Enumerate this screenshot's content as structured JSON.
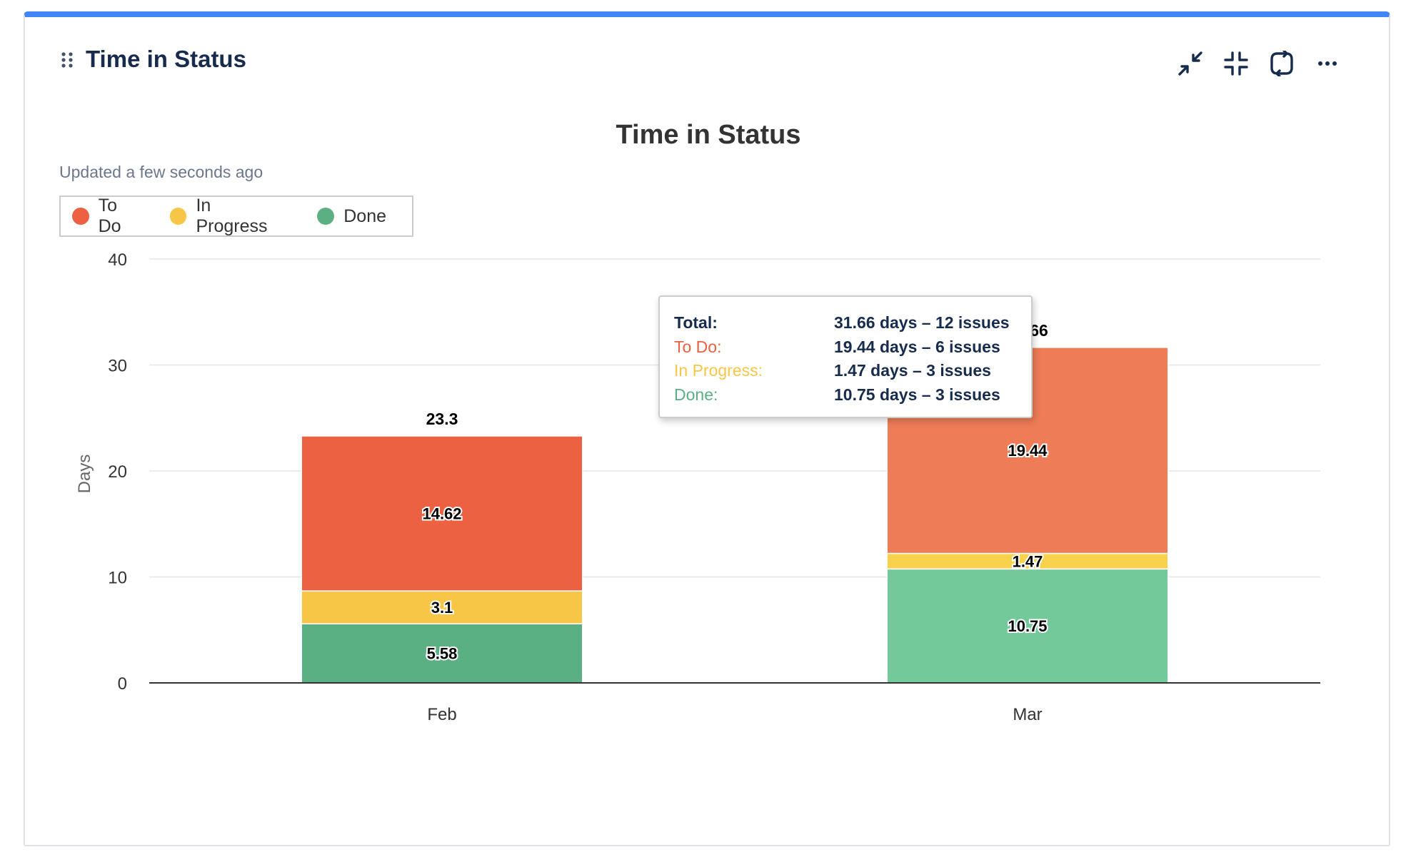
{
  "header": {
    "title": "Time in Status",
    "tools": [
      "minimize-icon",
      "collapse-icon",
      "refresh-icon",
      "more-icon"
    ]
  },
  "updated_text": "Updated a few seconds ago",
  "legend": [
    {
      "label": "To Do",
      "color": "#eb6142"
    },
    {
      "label": "In Progress",
      "color": "#f7c646"
    },
    {
      "label": "Done",
      "color": "#5bb083"
    }
  ],
  "tooltip": {
    "rows": [
      {
        "label": "Total:",
        "value": "31.66 days – 12 issues",
        "color": "#172b4d",
        "bold": true
      },
      {
        "label": "To Do:",
        "value": "19.44 days – 6 issues",
        "color": "#eb6142",
        "bold": false
      },
      {
        "label": "In Progress:",
        "value": "1.47 days – 3 issues",
        "color": "#f7c646",
        "bold": false
      },
      {
        "label": "Done:",
        "value": "10.75 days – 3 issues",
        "color": "#5bb083",
        "bold": false
      }
    ]
  },
  "chart_data": {
    "type": "bar",
    "stacked": true,
    "title": "Time in Status",
    "xlabel": "",
    "ylabel": "Days",
    "ylim": [
      0,
      40
    ],
    "yticks": [
      0,
      10,
      20,
      30,
      40
    ],
    "categories": [
      "Feb",
      "Mar"
    ],
    "totals": [
      "23.3",
      "31.66"
    ],
    "highlighted_category": "Mar",
    "series": [
      {
        "name": "Done",
        "values": [
          5.58,
          10.75
        ],
        "color": "#5bb083",
        "highlight_color": "#74c99a"
      },
      {
        "name": "In Progress",
        "values": [
          3.1,
          1.47
        ],
        "color": "#f7c646",
        "highlight_color": "#f8d24c"
      },
      {
        "name": "To Do",
        "values": [
          14.62,
          19.44
        ],
        "color": "#eb6142",
        "highlight_color": "#ee7c56"
      }
    ],
    "grid": true
  }
}
